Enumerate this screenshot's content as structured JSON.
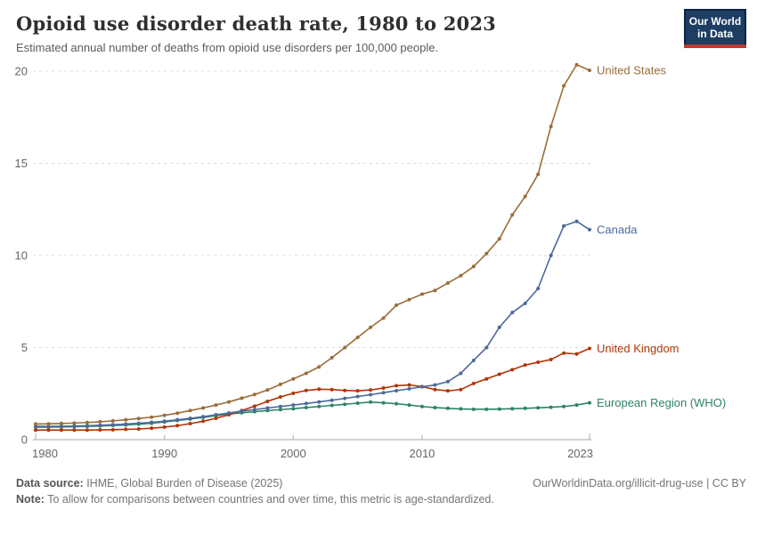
{
  "logo": {
    "line1": "Our World",
    "line2": "in Data",
    "colors": {
      "frame": "#0b2341",
      "panel": "#1d3d63",
      "accent_red": "#c0392b"
    }
  },
  "chart_data": {
    "type": "line",
    "title": "Opioid use disorder death rate, 1980 to 2023",
    "subtitle": "Estimated annual number of deaths from opioid use disorders per 100,000 people.",
    "xlabel": "",
    "ylabel": "",
    "grid": true,
    "legend_position": "right-end-labels",
    "ylim": [
      0,
      20.6
    ],
    "yticks": [
      0,
      5,
      10,
      15,
      20
    ],
    "xticks": [
      1980,
      1990,
      2000,
      2010,
      2023
    ],
    "x": [
      1980,
      1981,
      1982,
      1983,
      1984,
      1985,
      1986,
      1987,
      1988,
      1989,
      1990,
      1991,
      1992,
      1993,
      1994,
      1995,
      1996,
      1997,
      1998,
      1999,
      2000,
      2001,
      2002,
      2003,
      2004,
      2005,
      2006,
      2007,
      2008,
      2009,
      2010,
      2011,
      2012,
      2013,
      2014,
      2015,
      2016,
      2017,
      2018,
      2019,
      2020,
      2021,
      2022,
      2023
    ],
    "series": [
      {
        "name": "United States",
        "color": "#996D39",
        "values": [
          0.85,
          0.86,
          0.88,
          0.9,
          0.93,
          0.97,
          1.02,
          1.08,
          1.15,
          1.22,
          1.32,
          1.44,
          1.58,
          1.72,
          1.88,
          2.05,
          2.25,
          2.45,
          2.7,
          3.0,
          3.3,
          3.6,
          3.95,
          4.45,
          5.0,
          5.55,
          6.1,
          6.6,
          7.3,
          7.6,
          7.9,
          8.1,
          8.5,
          8.9,
          9.4,
          10.1,
          10.9,
          12.2,
          13.2,
          14.4,
          17.0,
          19.2,
          20.35,
          20.05
        ]
      },
      {
        "name": "Canada",
        "color": "#4C6A9C",
        "values": [
          0.72,
          0.72,
          0.73,
          0.74,
          0.76,
          0.78,
          0.81,
          0.85,
          0.89,
          0.94,
          1.0,
          1.08,
          1.16,
          1.25,
          1.35,
          1.45,
          1.55,
          1.63,
          1.72,
          1.8,
          1.88,
          1.96,
          2.05,
          2.14,
          2.24,
          2.34,
          2.44,
          2.55,
          2.66,
          2.76,
          2.87,
          2.97,
          3.15,
          3.6,
          4.3,
          5.0,
          6.1,
          6.9,
          7.4,
          8.2,
          10.0,
          11.6,
          11.85,
          11.4
        ]
      },
      {
        "name": "United Kingdom",
        "color": "#B13507",
        "values": [
          0.52,
          0.52,
          0.52,
          0.52,
          0.52,
          0.53,
          0.54,
          0.56,
          0.58,
          0.62,
          0.68,
          0.76,
          0.87,
          1.0,
          1.16,
          1.35,
          1.58,
          1.82,
          2.08,
          2.32,
          2.52,
          2.67,
          2.74,
          2.72,
          2.67,
          2.65,
          2.7,
          2.8,
          2.93,
          2.97,
          2.88,
          2.72,
          2.65,
          2.72,
          3.05,
          3.3,
          3.55,
          3.8,
          4.05,
          4.2,
          4.35,
          4.7,
          4.65,
          4.95
        ]
      },
      {
        "name": "European Region (WHO)",
        "color": "#2C8465",
        "values": [
          0.68,
          0.68,
          0.69,
          0.7,
          0.72,
          0.74,
          0.77,
          0.8,
          0.84,
          0.89,
          0.96,
          1.04,
          1.12,
          1.21,
          1.3,
          1.39,
          1.46,
          1.52,
          1.58,
          1.63,
          1.68,
          1.74,
          1.8,
          1.86,
          1.92,
          1.98,
          2.04,
          2.0,
          1.95,
          1.88,
          1.8,
          1.74,
          1.7,
          1.67,
          1.65,
          1.65,
          1.66,
          1.68,
          1.7,
          1.73,
          1.76,
          1.8,
          1.88,
          2.0
        ]
      }
    ]
  },
  "footer": {
    "source_label": "Data source:",
    "source_text": " IHME, Global Burden of Disease (2025)",
    "link": "OurWorldinData.org/illicit-drug-use | CC BY",
    "note_label": "Note:",
    "note_text": " To allow for comparisons between countries and over time, this metric is age-standardized."
  }
}
